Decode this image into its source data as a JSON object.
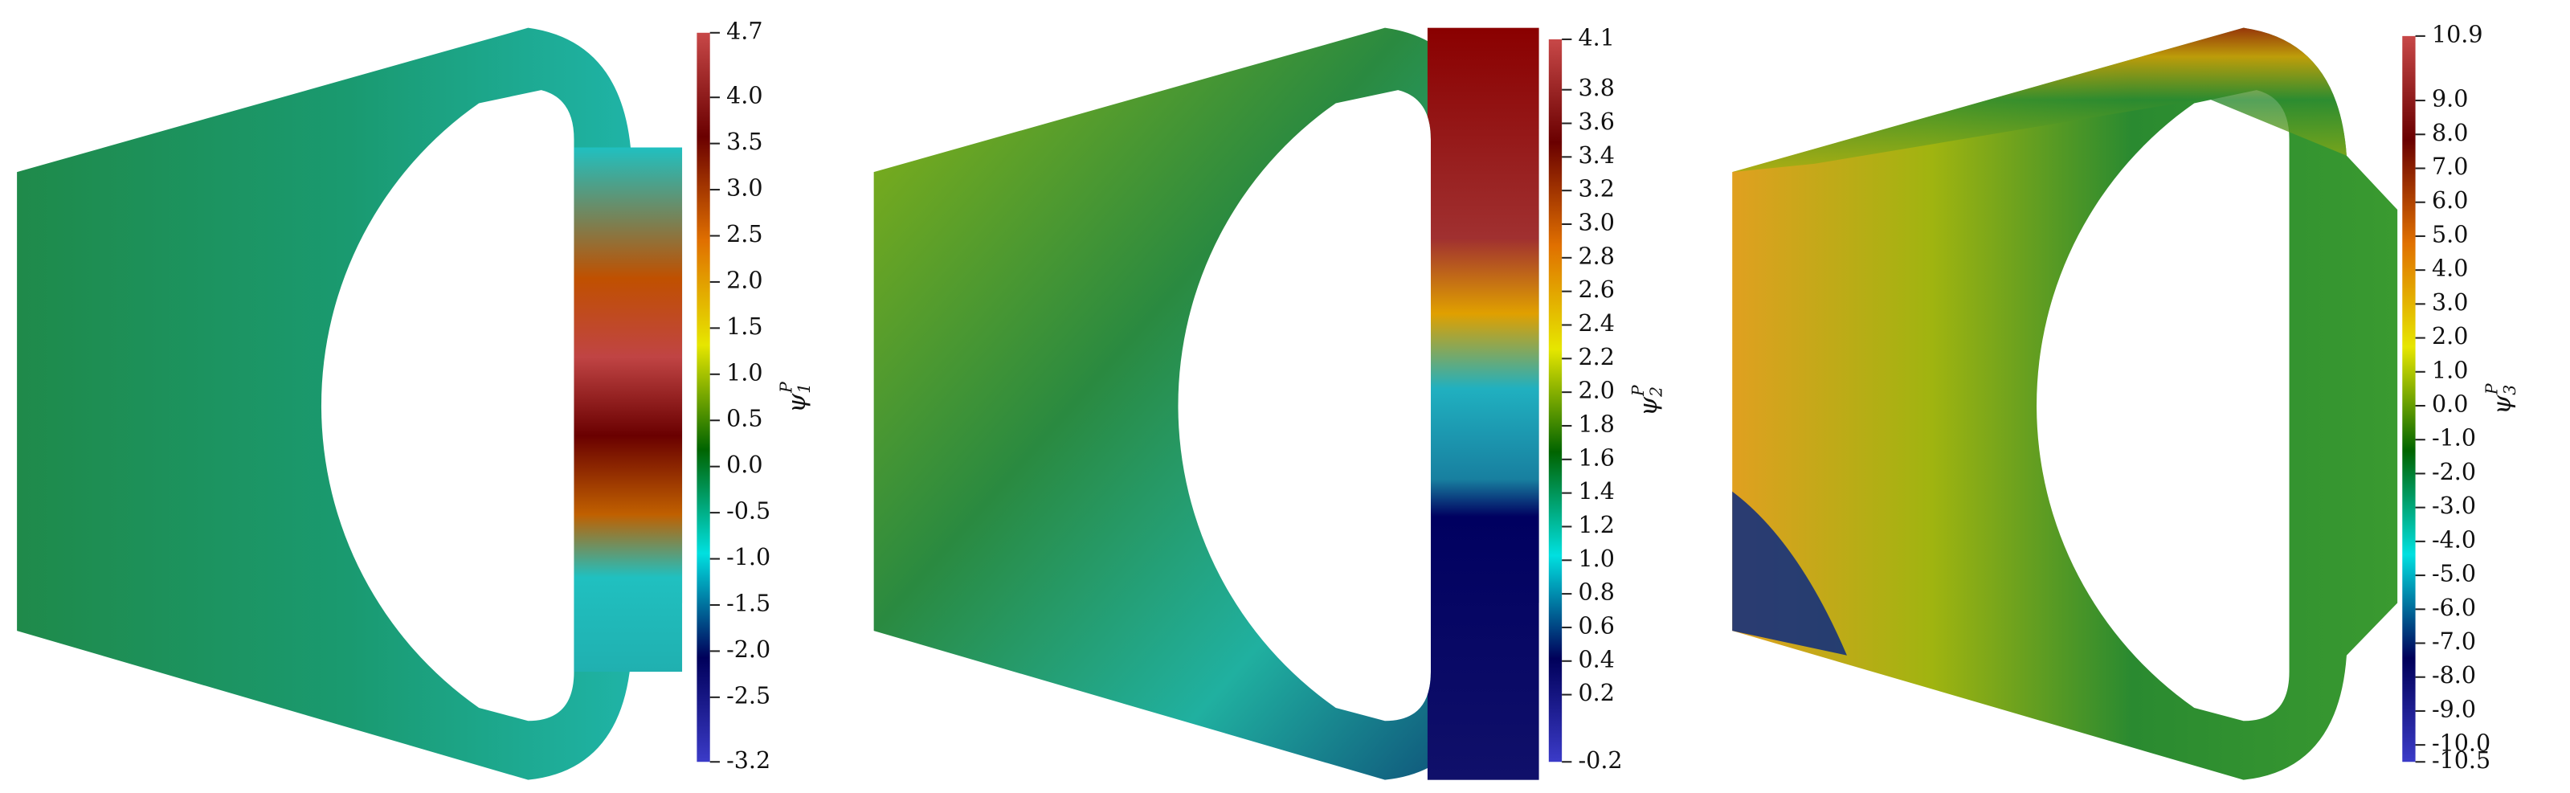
{
  "chart_data": [
    {
      "type": "colorbar",
      "label": {
        "symbol": "ψ",
        "sub": "1",
        "sup": "P"
      },
      "colormap": [
        "#3b3bc8",
        "#00005a",
        "#00e0e0",
        "#006400",
        "#e6e600",
        "#e07000",
        "#6a0000",
        "#c84848"
      ],
      "ylim": [
        -3.2,
        4.7
      ],
      "yticks": [
        4.7,
        {
          "value": 4,
          "label": "4.0"
        },
        3.5,
        {
          "value": 3,
          "label": "3.0"
        },
        2.5,
        {
          "value": 2,
          "label": "2.0"
        },
        1.5,
        {
          "value": 1,
          "label": "1.0"
        },
        0.5,
        {
          "value": 0,
          "label": "0.0"
        },
        -0.5,
        {
          "value": -1,
          "label": "-1.0"
        },
        -1.5,
        {
          "value": -2,
          "label": "-2.0"
        },
        -2.5,
        -3.2
      ]
    },
    {
      "type": "colorbar",
      "label": {
        "symbol": "ψ",
        "sub": "2",
        "sup": "P"
      },
      "colormap": [
        "#3b3bc8",
        "#00005a",
        "#00e0e0",
        "#006400",
        "#e6e600",
        "#e07000",
        "#6a0000",
        "#c84848"
      ],
      "ylim": [
        -0.2,
        4.1
      ],
      "yticks": [
        4.1,
        3.8,
        3.6,
        3.4,
        3.2,
        {
          "value": 3,
          "label": "3.0"
        },
        2.8,
        2.6,
        2.4,
        2.2,
        {
          "value": 2,
          "label": "2.0"
        },
        1.8,
        1.6,
        1.4,
        1.2,
        {
          "value": 1,
          "label": "1.0"
        },
        0.8,
        0.6,
        0.4,
        0.2,
        -0.2
      ]
    },
    {
      "type": "colorbar",
      "label": {
        "symbol": "ψ",
        "sub": "3",
        "sup": "P"
      },
      "colormap": [
        "#3b3bc8",
        "#00005a",
        "#00e0e0",
        "#006400",
        "#e6e600",
        "#e07000",
        "#6a0000",
        "#c84848"
      ],
      "ylim": [
        -10.5,
        10.9
      ],
      "yticks": [
        10.9,
        {
          "value": 9,
          "label": "9.0"
        },
        {
          "value": 8,
          "label": "8.0"
        },
        {
          "value": 7,
          "label": "7.0"
        },
        {
          "value": 6,
          "label": "6.0"
        },
        {
          "value": 5,
          "label": "5.0"
        },
        {
          "value": 4,
          "label": "4.0"
        },
        {
          "value": 3,
          "label": "3.0"
        },
        {
          "value": 2,
          "label": "2.0"
        },
        {
          "value": 1,
          "label": "1.0"
        },
        {
          "value": 0,
          "label": "0.0"
        },
        {
          "value": -1,
          "label": "-1.0"
        },
        {
          "value": -2,
          "label": "-2.0"
        },
        {
          "value": -3,
          "label": "-3.0"
        },
        {
          "value": -4,
          "label": "-4.0"
        },
        {
          "value": -5,
          "label": "-5.0"
        },
        {
          "value": -6,
          "label": "-6.0"
        },
        {
          "value": -7,
          "label": "-7.0"
        },
        {
          "value": -8,
          "label": "-8.0"
        },
        {
          "value": -9,
          "label": "-9.0"
        },
        {
          "value": -10,
          "label": "-10.0"
        },
        -10.5
      ]
    }
  ]
}
